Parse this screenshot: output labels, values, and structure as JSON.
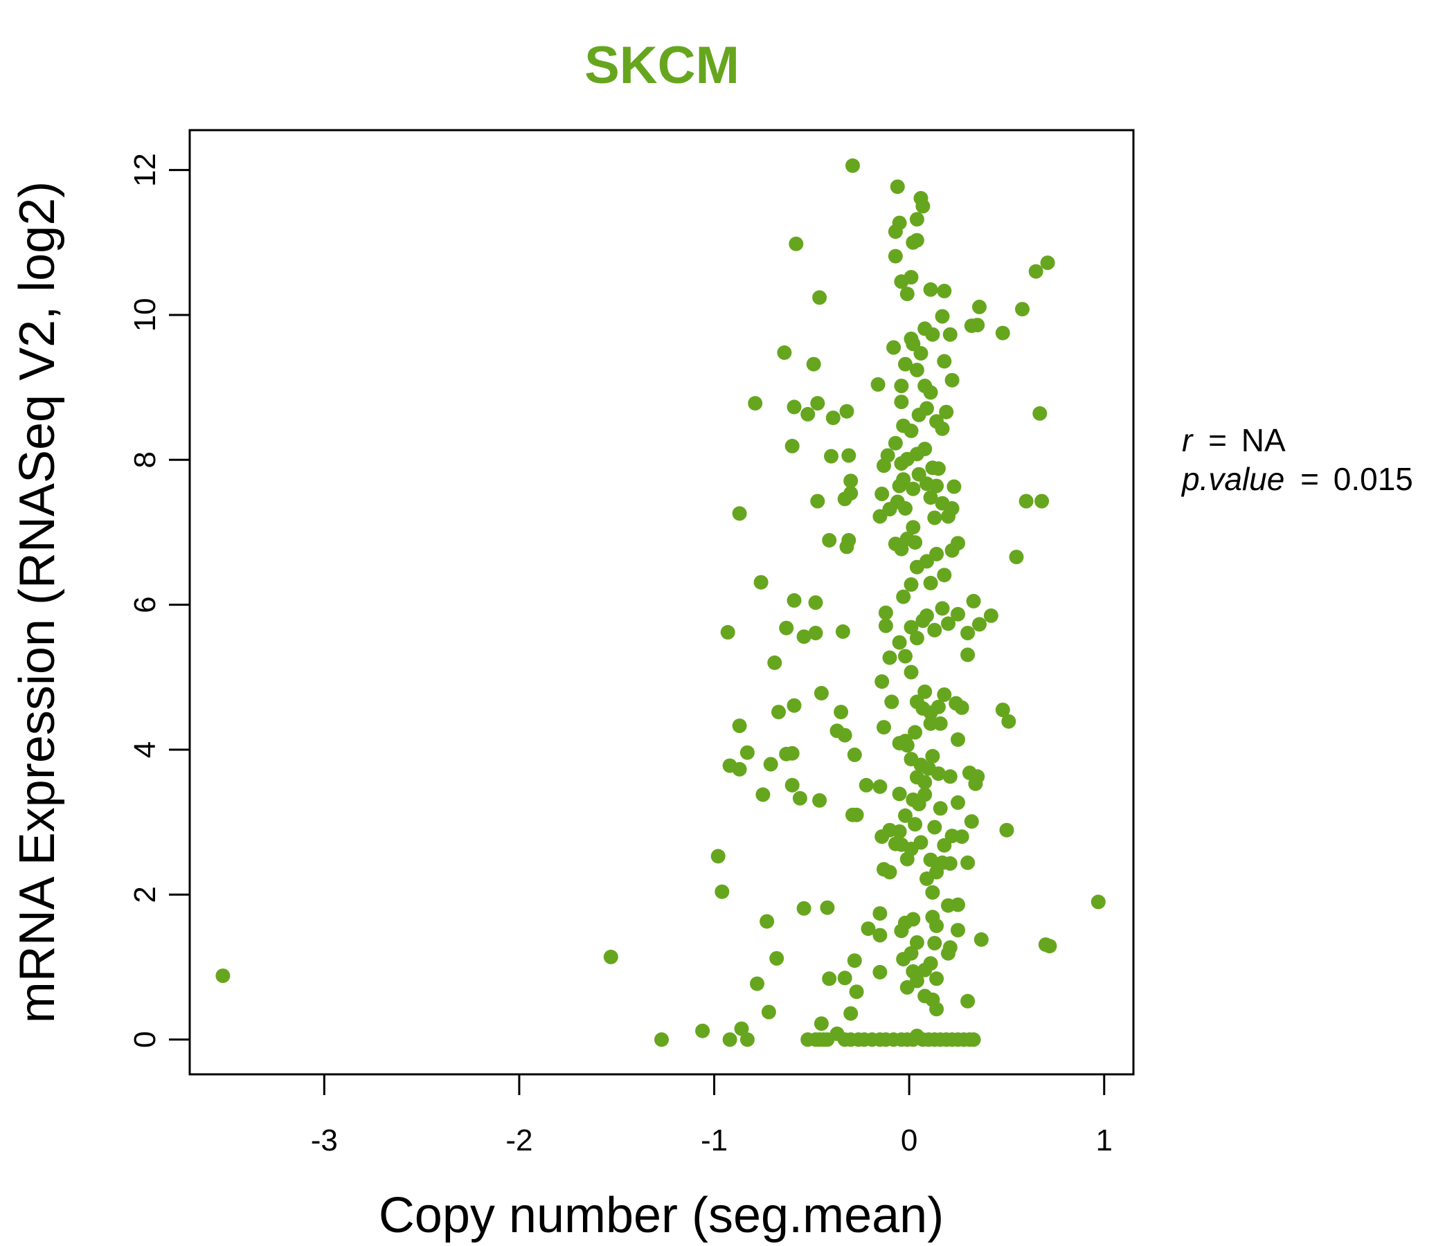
{
  "chart_data": {
    "type": "scatter",
    "title": "SKCM",
    "xlabel": "Copy number (seg.mean)",
    "ylabel": "mRNA Expression (RNASeq V2, log2)",
    "xlim": [
      -3.69,
      1.15
    ],
    "ylim": [
      -0.48,
      12.55
    ],
    "x_ticks": [
      "-3",
      "-2",
      "-1",
      "0",
      "1"
    ],
    "x_tick_values": [
      -3,
      -2,
      -1,
      0,
      1
    ],
    "y_ticks": [
      "0",
      "2",
      "4",
      "6",
      "8",
      "10",
      "12"
    ],
    "y_tick_values": [
      0,
      2,
      4,
      6,
      8,
      10,
      12
    ],
    "grid": false,
    "color": "#66A61E",
    "stats": {
      "r_label": "r",
      "r_value": "NA",
      "p_label": "p.value",
      "p_value": "0.015",
      "equals": "="
    },
    "points": [
      [
        -3.52,
        0.88
      ],
      [
        -1.53,
        1.14
      ],
      [
        -1.27,
        0
      ],
      [
        -1.06,
        0.12
      ],
      [
        -0.92,
        0
      ],
      [
        -0.86,
        0.15
      ],
      [
        -0.83,
        0
      ],
      [
        -0.78,
        0.77
      ],
      [
        -0.72,
        0.38
      ],
      [
        -0.68,
        1.12
      ],
      [
        -0.73,
        1.63
      ],
      [
        -0.96,
        2.04
      ],
      [
        -0.98,
        2.53
      ],
      [
        -0.54,
        1.81
      ],
      [
        -0.42,
        1.82
      ],
      [
        -0.45,
        0.22
      ],
      [
        -0.41,
        0.84
      ],
      [
        -0.33,
        0.85
      ],
      [
        -0.3,
        0.36
      ],
      [
        -0.27,
        0.66
      ],
      [
        -0.28,
        1.09
      ],
      [
        -0.21,
        1.53
      ],
      [
        -0.15,
        1.74
      ],
      [
        -0.15,
        1.44
      ],
      [
        -0.15,
        0.93
      ],
      [
        -0.52,
        0
      ],
      [
        -0.48,
        0
      ],
      [
        -0.46,
        0
      ],
      [
        -0.44,
        0
      ],
      [
        -0.42,
        0
      ],
      [
        -0.37,
        0.08
      ],
      [
        -0.33,
        0
      ],
      [
        -0.3,
        0
      ],
      [
        -0.26,
        0
      ],
      [
        -0.23,
        0
      ],
      [
        -0.19,
        0
      ],
      [
        -0.15,
        0
      ],
      [
        -0.12,
        0
      ],
      [
        -0.08,
        0
      ],
      [
        -0.04,
        0
      ],
      [
        -0.01,
        0
      ],
      [
        0.02,
        0
      ],
      [
        0.04,
        0.05
      ],
      [
        0.07,
        0
      ],
      [
        0.1,
        0
      ],
      [
        0.13,
        0
      ],
      [
        0.16,
        0
      ],
      [
        0.19,
        0
      ],
      [
        0.22,
        0
      ],
      [
        0.25,
        0
      ],
      [
        0.28,
        0
      ],
      [
        0.31,
        0
      ],
      [
        0.33,
        0
      ],
      [
        0.3,
        0.53
      ],
      [
        0.14,
        0.42
      ],
      [
        0.12,
        0.55
      ],
      [
        0.08,
        0.6
      ],
      [
        0.14,
        0.84
      ],
      [
        0.11,
        1.05
      ],
      [
        0.2,
        1.19
      ],
      [
        0.21,
        1.27
      ],
      [
        0.13,
        1.33
      ],
      [
        0.01,
        1.19
      ],
      [
        -0.03,
        1.11
      ],
      [
        0.04,
        1.34
      ],
      [
        0.02,
        1.66
      ],
      [
        -0.02,
        1.61
      ],
      [
        0.02,
        0.94
      ],
      [
        -0.01,
        0.72
      ],
      [
        0.04,
        0.81
      ],
      [
        0.08,
        0.96
      ],
      [
        -0.04,
        1.5
      ],
      [
        0.12,
        1.69
      ],
      [
        0.14,
        1.57
      ],
      [
        0.25,
        1.51
      ],
      [
        0.2,
        1.85
      ],
      [
        0.25,
        1.86
      ],
      [
        0.37,
        1.38
      ],
      [
        0.7,
        1.31
      ],
      [
        0.72,
        1.29
      ],
      [
        0.97,
        1.9
      ],
      [
        0.09,
        2.22
      ],
      [
        0.12,
        2.03
      ],
      [
        0.14,
        2.31
      ],
      [
        0.17,
        2.44
      ],
      [
        0.21,
        2.43
      ],
      [
        0.11,
        2.48
      ],
      [
        0.06,
        2.72
      ],
      [
        0.01,
        2.63
      ],
      [
        -0.01,
        2.49
      ],
      [
        -0.04,
        2.69
      ],
      [
        -0.07,
        2.7
      ],
      [
        -0.1,
        2.31
      ],
      [
        -0.13,
        2.35
      ],
      [
        -0.14,
        2.8
      ],
      [
        -0.1,
        2.89
      ],
      [
        -0.05,
        2.87
      ],
      [
        0.03,
        2.97
      ],
      [
        0.13,
        2.93
      ],
      [
        0.18,
        2.68
      ],
      [
        0.22,
        2.81
      ],
      [
        0.27,
        2.8
      ],
      [
        0.3,
        2.44
      ],
      [
        0.32,
        3.01
      ],
      [
        0.25,
        3.27
      ],
      [
        0.16,
        3.19
      ],
      [
        0.08,
        3.38
      ],
      [
        0.05,
        3.25
      ],
      [
        0.02,
        3.31
      ],
      [
        -0.02,
        3.09
      ],
      [
        -0.05,
        3.39
      ],
      [
        -0.15,
        3.49
      ],
      [
        -0.22,
        3.51
      ],
      [
        -0.29,
        3.1
      ],
      [
        -0.27,
        3.1
      ],
      [
        -0.46,
        3.3
      ],
      [
        -0.56,
        3.33
      ],
      [
        -0.6,
        3.51
      ],
      [
        -0.63,
        3.94
      ],
      [
        -0.6,
        3.95
      ],
      [
        -0.71,
        3.8
      ],
      [
        -0.83,
        3.96
      ],
      [
        -0.87,
        3.73
      ],
      [
        -0.92,
        3.78
      ],
      [
        -0.87,
        4.33
      ],
      [
        -0.75,
        3.38
      ],
      [
        -0.28,
        3.93
      ],
      [
        -0.33,
        4.2
      ],
      [
        -0.37,
        4.26
      ],
      [
        -0.35,
        4.52
      ],
      [
        -0.45,
        4.78
      ],
      [
        -0.59,
        4.61
      ],
      [
        -0.67,
        4.52
      ],
      [
        -0.69,
        5.2
      ],
      [
        -0.93,
        5.62
      ],
      [
        -0.59,
        6.06
      ],
      [
        -0.48,
        6.03
      ],
      [
        -0.54,
        5.56
      ],
      [
        -0.63,
        5.68
      ],
      [
        -0.48,
        5.61
      ],
      [
        -0.34,
        5.63
      ],
      [
        -0.13,
        4.31
      ],
      [
        -0.02,
        4.12
      ],
      [
        0.01,
        3.87
      ],
      [
        0.04,
        3.62
      ],
      [
        0.06,
        3.79
      ],
      [
        0.08,
        3.55
      ],
      [
        0.1,
        3.74
      ],
      [
        0.12,
        3.91
      ],
      [
        0.15,
        3.67
      ],
      [
        0.21,
        3.63
      ],
      [
        0.31,
        3.68
      ],
      [
        0.35,
        3.63
      ],
      [
        0.34,
        3.53
      ],
      [
        0.25,
        4.14
      ],
      [
        0.16,
        4.36
      ],
      [
        0.11,
        4.51
      ],
      [
        0.07,
        4.57
      ],
      [
        0.03,
        4.24
      ],
      [
        -0.01,
        4.06
      ],
      [
        -0.05,
        4.09
      ],
      [
        -0.09,
        4.66
      ],
      [
        -0.14,
        4.94
      ],
      [
        -0.1,
        5.27
      ],
      [
        -0.05,
        5.48
      ],
      [
        0.01,
        5.07
      ],
      [
        0.04,
        4.66
      ],
      [
        0.08,
        4.8
      ],
      [
        0.11,
        4.36
      ],
      [
        0.15,
        4.59
      ],
      [
        0.18,
        4.76
      ],
      [
        0.24,
        4.64
      ],
      [
        0.27,
        4.58
      ],
      [
        0.48,
        4.55
      ],
      [
        0.51,
        4.39
      ],
      [
        0.5,
        2.89
      ],
      [
        -0.02,
        5.29
      ],
      [
        0.01,
        5.69
      ],
      [
        0.04,
        5.54
      ],
      [
        0.07,
        5.78
      ],
      [
        0.09,
        5.85
      ],
      [
        0.13,
        5.65
      ],
      [
        0.17,
        5.95
      ],
      [
        0.2,
        5.74
      ],
      [
        0.25,
        5.87
      ],
      [
        0.3,
        5.61
      ],
      [
        0.33,
        6.05
      ],
      [
        0.36,
        5.73
      ],
      [
        0.42,
        5.85
      ],
      [
        0.3,
        5.31
      ],
      [
        -0.12,
        5.71
      ],
      [
        -0.12,
        5.89
      ],
      [
        -0.03,
        6.11
      ],
      [
        0.01,
        6.28
      ],
      [
        0.04,
        6.52
      ],
      [
        0.09,
        6.6
      ],
      [
        0.11,
        6.3
      ],
      [
        0.14,
        6.7
      ],
      [
        0.18,
        6.41
      ],
      [
        0.22,
        6.75
      ],
      [
        0.25,
        6.85
      ],
      [
        0.55,
        6.66
      ],
      [
        -0.04,
        6.77
      ],
      [
        -0.01,
        6.91
      ],
      [
        0.03,
        6.86
      ],
      [
        -0.07,
        6.84
      ],
      [
        -0.31,
        6.89
      ],
      [
        -0.32,
        6.8
      ],
      [
        -0.41,
        6.89
      ],
      [
        -0.76,
        6.31
      ],
      [
        -0.87,
        7.26
      ],
      [
        -0.47,
        7.43
      ],
      [
        -0.33,
        7.46
      ],
      [
        -0.3,
        7.54
      ],
      [
        -0.3,
        7.71
      ],
      [
        -0.14,
        7.53
      ],
      [
        -0.15,
        7.22
      ],
      [
        -0.1,
        7.32
      ],
      [
        -0.06,
        7.42
      ],
      [
        -0.03,
        7.73
      ],
      [
        0.02,
        7.6
      ],
      [
        0.05,
        7.8
      ],
      [
        0.09,
        7.67
      ],
      [
        0.11,
        7.48
      ],
      [
        0.14,
        7.64
      ],
      [
        0.17,
        7.4
      ],
      [
        0.2,
        7.22
      ],
      [
        0.23,
        7.63
      ],
      [
        0.22,
        7.33
      ],
      [
        0.6,
        7.43
      ],
      [
        0.68,
        7.43
      ],
      [
        0.13,
        7.2
      ],
      [
        0.02,
        7.07
      ],
      [
        -0.02,
        7.33
      ],
      [
        -0.05,
        7.64
      ],
      [
        -0.04,
        7.95
      ],
      [
        -0.01,
        8.01
      ],
      [
        0.04,
        8.08
      ],
      [
        0.08,
        8.15
      ],
      [
        0.12,
        7.89
      ],
      [
        0.15,
        7.88
      ],
      [
        -0.13,
        7.92
      ],
      [
        -0.11,
        8.06
      ],
      [
        -0.07,
        8.23
      ],
      [
        -0.03,
        8.47
      ],
      [
        0.01,
        8.4
      ],
      [
        0.05,
        8.62
      ],
      [
        0.09,
        8.71
      ],
      [
        0.14,
        8.53
      ],
      [
        0.17,
        8.43
      ],
      [
        0.19,
        8.66
      ],
      [
        0.11,
        8.93
      ],
      [
        0.08,
        9.02
      ],
      [
        0.04,
        9.24
      ],
      [
        -0.04,
        8.8
      ],
      [
        -0.04,
        9.02
      ],
      [
        -0.16,
        9.04
      ],
      [
        -0.08,
        9.55
      ],
      [
        -0.02,
        9.32
      ],
      [
        0.02,
        9.6
      ],
      [
        0.06,
        9.47
      ],
      [
        0.08,
        9.81
      ],
      [
        0.12,
        9.73
      ],
      [
        0.17,
        9.98
      ],
      [
        0.21,
        9.73
      ],
      [
        0.22,
        9.1
      ],
      [
        0.18,
        9.36
      ],
      [
        0.01,
        9.67
      ],
      [
        0.32,
        9.85
      ],
      [
        0.35,
        9.86
      ],
      [
        0.36,
        10.11
      ],
      [
        0.48,
        9.75
      ],
      [
        0.58,
        10.08
      ],
      [
        0.65,
        10.6
      ],
      [
        0.71,
        10.72
      ],
      [
        0.67,
        8.64
      ],
      [
        -0.04,
        10.46
      ],
      [
        -0.01,
        10.29
      ],
      [
        0.01,
        10.52
      ],
      [
        0.11,
        10.35
      ],
      [
        0.18,
        10.33
      ],
      [
        -0.07,
        10.81
      ],
      [
        -0.05,
        11.27
      ],
      [
        -0.07,
        11.15
      ],
      [
        0.02,
        11.0
      ],
      [
        0.04,
        11.03
      ],
      [
        0.04,
        11.32
      ],
      [
        0.06,
        11.61
      ],
      [
        0.07,
        11.5
      ],
      [
        -0.06,
        11.77
      ],
      [
        -0.29,
        12.06
      ],
      [
        -0.58,
        10.98
      ],
      [
        -0.46,
        10.24
      ],
      [
        -0.49,
        9.32
      ],
      [
        -0.64,
        9.48
      ],
      [
        -0.59,
        8.73
      ],
      [
        -0.52,
        8.63
      ],
      [
        -0.47,
        8.78
      ],
      [
        -0.39,
        8.58
      ],
      [
        -0.32,
        8.67
      ],
      [
        -0.4,
        8.05
      ],
      [
        -0.6,
        8.19
      ],
      [
        -0.79,
        8.78
      ],
      [
        -0.31,
        8.06
      ]
    ]
  }
}
